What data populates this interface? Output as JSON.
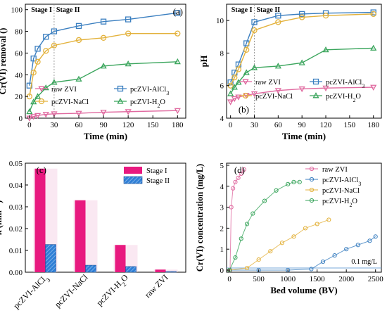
{
  "chart_data": [
    {
      "type": "line",
      "panel_label": "(a)",
      "xlabel": "Time (min)",
      "ylabel": "Cr(VI) removal (%)",
      "xlim": [
        -5,
        190
      ],
      "ylim": [
        0,
        105
      ],
      "xticks": [
        0,
        30,
        60,
        90,
        120,
        150,
        180
      ],
      "yticks": [
        0,
        20,
        40,
        60,
        80,
        100
      ],
      "stage_labels": [
        "Stage I",
        "Stage II"
      ],
      "stage_boundary": 30,
      "legend_position": "lower-center",
      "series": [
        {
          "name": "raw ZVI",
          "color": "#e06aa0",
          "marker": "triangle-down",
          "x": [
            0,
            5,
            10,
            20,
            30,
            60,
            90,
            120,
            180
          ],
          "y": [
            0,
            1.5,
            2.5,
            3.5,
            4.0,
            4.5,
            5.5,
            6.0,
            7.0
          ]
        },
        {
          "name": "pcZVI-AlCl3",
          "color": "#3b7fc0",
          "marker": "square",
          "x": [
            0,
            5,
            10,
            20,
            30,
            60,
            90,
            120,
            180
          ],
          "y": [
            30,
            55,
            64,
            75,
            80,
            85,
            89,
            91,
            97
          ]
        },
        {
          "name": "pcZVI-NaCl",
          "color": "#e3b23c",
          "marker": "circle",
          "x": [
            0,
            5,
            10,
            20,
            30,
            60,
            90,
            120,
            180
          ],
          "y": [
            20,
            42,
            52,
            62,
            67,
            72,
            74,
            78,
            78
          ]
        },
        {
          "name": "pcZVI-H2O",
          "color": "#3aa55c",
          "marker": "triangle-up",
          "x": [
            0,
            5,
            10,
            20,
            30,
            60,
            90,
            120,
            180
          ],
          "y": [
            6,
            15,
            20,
            28,
            33,
            36,
            48,
            50,
            52
          ]
        }
      ]
    },
    {
      "type": "line",
      "panel_label": "(b)",
      "xlabel": "Time (min)",
      "ylabel": "pH",
      "xlim": [
        -5,
        190
      ],
      "ylim": [
        4,
        11
      ],
      "xticks": [
        0,
        30,
        60,
        90,
        120,
        150,
        180
      ],
      "yticks": [
        4,
        6,
        8,
        10
      ],
      "stage_labels": [
        "Stage I",
        "Stage II"
      ],
      "stage_boundary": 30,
      "legend_position": "lower-center",
      "series": [
        {
          "name": "raw ZVI",
          "color": "#e06aa0",
          "marker": "triangle-down",
          "x": [
            0,
            5,
            10,
            20,
            30,
            60,
            90,
            120,
            180
          ],
          "y": [
            5.0,
            5.2,
            5.3,
            5.4,
            5.5,
            5.7,
            5.8,
            5.85,
            5.9
          ]
        },
        {
          "name": "pcZVI-AlCl3",
          "color": "#3b7fc0",
          "marker": "square",
          "x": [
            0,
            5,
            10,
            20,
            30,
            60,
            90,
            120,
            180
          ],
          "y": [
            6.2,
            6.8,
            7.3,
            8.6,
            9.9,
            10.3,
            10.4,
            10.45,
            10.5
          ]
        },
        {
          "name": "pcZVI-NaCl",
          "color": "#e3b23c",
          "marker": "circle",
          "x": [
            0,
            5,
            10,
            20,
            30,
            60,
            90,
            120,
            180
          ],
          "y": [
            6.0,
            6.5,
            7.0,
            8.2,
            9.4,
            9.9,
            10.2,
            10.3,
            10.4
          ]
        },
        {
          "name": "pcZVI-H2O",
          "color": "#3aa55c",
          "marker": "triangle-up",
          "x": [
            0,
            5,
            10,
            20,
            30,
            60,
            90,
            120,
            180
          ],
          "y": [
            5.5,
            5.9,
            6.2,
            6.8,
            7.1,
            7.2,
            7.4,
            8.2,
            8.3
          ]
        }
      ]
    },
    {
      "type": "bar",
      "panel_label": "(c)",
      "ylabel": "k (min⁻¹)",
      "ylim": [
        0,
        0.05
      ],
      "yticks": [
        0.0,
        0.01,
        0.02,
        0.03,
        0.04,
        0.05
      ],
      "ytick_labels": [
        "0.00",
        "0.01",
        "0.02",
        "0.03",
        "0.04",
        "0.05"
      ],
      "categories": [
        "pcZVI-AlCl3",
        "pcZVI-NaCl",
        "pcZVI-H2O",
        "raw ZVI"
      ],
      "legend_position": "top-right",
      "series": [
        {
          "name": "Stage I",
          "color": "#e8197f",
          "values": [
            0.0475,
            0.033,
            0.0125,
            0.0012
          ]
        },
        {
          "name": "Stage II",
          "color": "#2f7fd6",
          "values": [
            0.0127,
            0.0032,
            0.0026,
            0.0003
          ]
        }
      ]
    },
    {
      "type": "scatter",
      "panel_label": "(d)",
      "xlabel": "Bed volume (BV)",
      "ylabel": "Cr(VI) concentration (mg/L)",
      "xlim": [
        -50,
        2600
      ],
      "ylim": [
        -0.1,
        5.1
      ],
      "xticks": [
        0,
        500,
        1000,
        1500,
        2000,
        2500
      ],
      "yticks": [
        0,
        1,
        2,
        3,
        4,
        5
      ],
      "reference_line": {
        "y": 0.1,
        "label": "0.1 mg/L"
      },
      "legend_position": "top-center",
      "series": [
        {
          "name": "raw ZVI",
          "color": "#e06aa0",
          "x": [
            10,
            30,
            60,
            100,
            150,
            200,
            250
          ],
          "y": [
            0.0,
            3.0,
            3.9,
            4.2,
            4.4,
            4.6,
            4.8
          ]
        },
        {
          "name": "pcZVI-AlCl3",
          "color": "#3b7fc0",
          "x": [
            0,
            500,
            1000,
            1400,
            1600,
            1800,
            2000,
            2200,
            2400,
            2500
          ],
          "y": [
            0,
            0,
            0,
            0.05,
            0.4,
            0.7,
            1.0,
            1.2,
            1.4,
            1.6
          ]
        },
        {
          "name": "pcZVI-NaCl",
          "color": "#e3b23c",
          "x": [
            0,
            300,
            500,
            700,
            900,
            1100,
            1300,
            1500,
            1700
          ],
          "y": [
            0,
            0.1,
            0.5,
            0.9,
            1.3,
            1.6,
            2.0,
            2.2,
            2.4
          ]
        },
        {
          "name": "pcZVI-H2O",
          "color": "#3aa55c",
          "x": [
            0,
            100,
            200,
            300,
            400,
            600,
            800,
            1000,
            1100,
            1200
          ],
          "y": [
            0,
            0.6,
            1.5,
            2.2,
            2.7,
            3.3,
            3.8,
            4.1,
            4.2,
            4.2
          ]
        }
      ]
    }
  ]
}
